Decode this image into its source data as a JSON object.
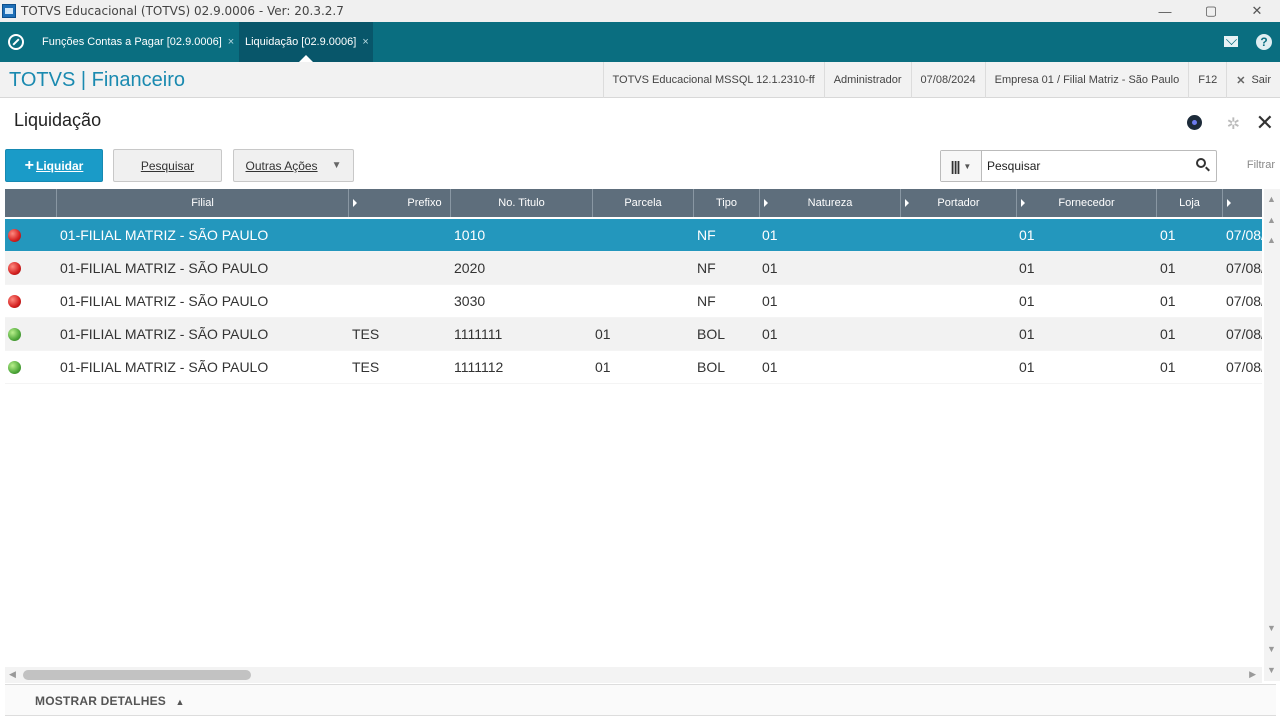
{
  "window": {
    "title": "TOTVS Educacional (TOTVS) 02.9.0006 - Ver: 20.3.2.7",
    "min": "—",
    "restore": "▢",
    "close": "✕"
  },
  "tabs": [
    {
      "label": "Funções Contas a Pagar [02.9.0006]",
      "close": "×"
    },
    {
      "label": "Liquidação [02.9.0006]",
      "close": "×"
    }
  ],
  "header": {
    "brand": "TOTVS | Financeiro",
    "environment": "TOTVS Educacional MSSQL 12.1.2310-ff",
    "user": "Administrador",
    "date": "07/08/2024",
    "company": "Empresa 01 / Filial Matriz - São Paulo",
    "shortcut": "F12",
    "exit": "Sair"
  },
  "page": {
    "title": "Liquidação"
  },
  "toolbar": {
    "liquidar": "Liquidar",
    "pesquisar": "Pesquisar",
    "outras_acoes": "Outras Ações"
  },
  "search": {
    "value": "Pesquisar",
    "filter_label": "Filtrar"
  },
  "grid": {
    "columns": [
      "Filial",
      "Prefixo",
      "No. Titulo",
      "Parcela",
      "Tipo",
      "Natureza",
      "Portador",
      "Fornecedor",
      "Loja",
      ""
    ],
    "rows": [
      {
        "status": "red",
        "filial": "01-FILIAL MATRIZ - SÃO PAULO",
        "prefixo": "",
        "titulo": "1010",
        "parcela": "",
        "tipo": "NF",
        "natureza": "01",
        "portador": "",
        "fornecedor": "01",
        "loja": "01",
        "emissao": "07/08/"
      },
      {
        "status": "red",
        "filial": "01-FILIAL MATRIZ - SÃO PAULO",
        "prefixo": "",
        "titulo": "2020",
        "parcela": "",
        "tipo": "NF",
        "natureza": "01",
        "portador": "",
        "fornecedor": "01",
        "loja": "01",
        "emissao": "07/08/"
      },
      {
        "status": "red",
        "filial": "01-FILIAL MATRIZ - SÃO PAULO",
        "prefixo": "",
        "titulo": "3030",
        "parcela": "",
        "tipo": "NF",
        "natureza": "01",
        "portador": "",
        "fornecedor": "01",
        "loja": "01",
        "emissao": "07/08/"
      },
      {
        "status": "green",
        "filial": "01-FILIAL MATRIZ - SÃO PAULO",
        "prefixo": "TES",
        "titulo": "1111111",
        "parcela": "01",
        "tipo": "BOL",
        "natureza": "01",
        "portador": "",
        "fornecedor": "01",
        "loja": "01",
        "emissao": "07/08/"
      },
      {
        "status": "green",
        "filial": "01-FILIAL MATRIZ - SÃO PAULO",
        "prefixo": "TES",
        "titulo": "1111112",
        "parcela": "01",
        "tipo": "BOL",
        "natureza": "01",
        "portador": "",
        "fornecedor": "01",
        "loja": "01",
        "emissao": "07/08/"
      }
    ]
  },
  "details": {
    "label": "MOSTRAR DETALHES",
    "arrow": "▲"
  },
  "icons": {
    "add": "+",
    "gear": "✲",
    "close": "✕",
    "up": "▲",
    "down": "▼",
    "left": "◀",
    "right": "▶"
  }
}
